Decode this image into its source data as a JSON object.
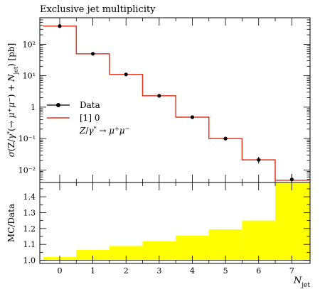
{
  "chart_data": [
    {
      "type": "line",
      "title": "Exclusive jet multiplicity",
      "ylabel": "σ(Z/γ* (→ μ+μ−) + N_jet) [pb]",
      "yscale": "log",
      "ylim": [
        0.004,
        700
      ],
      "xlim": [
        -0.6,
        7.55
      ],
      "x": [
        0,
        1,
        2,
        3,
        4,
        5,
        6,
        7
      ],
      "series": [
        {
          "name": "Data",
          "style": "points-with-errorbars",
          "color": "#000000",
          "values": [
            380,
            50,
            11,
            2.3,
            0.48,
            0.1,
            0.021,
            0.005
          ],
          "errors": [
            8,
            1.5,
            0.4,
            0.1,
            0.03,
            0.012,
            0.005,
            0.0025
          ]
        },
        {
          "name": "[1] 0",
          "style": "step-histogram",
          "color": "#e8361e",
          "edges": [
            -0.5,
            0.5,
            1.5,
            2.5,
            3.5,
            4.5,
            5.5,
            6.5,
            7.55
          ],
          "values": [
            380,
            50,
            11,
            2.3,
            0.48,
            0.1,
            0.021,
            0.0047
          ]
        }
      ],
      "ytick_labels": [
        "10²",
        "10¹",
        "1",
        "10⁻¹",
        "10⁻²"
      ],
      "yticks": [
        100,
        10,
        1,
        0.1,
        0.01
      ],
      "legend": {
        "placement": "middle-left",
        "entries": [
          "Data",
          "[1] 0"
        ],
        "subtitle": "Z/γ* → μ+μ−"
      }
    },
    {
      "type": "area",
      "ylabel": "MC/Data",
      "xlabel": "N_jet",
      "ylim": [
        0.98,
        1.49
      ],
      "xlim": [
        -0.6,
        7.55
      ],
      "band_color": "#ffff00",
      "edges": [
        -0.5,
        0.5,
        1.5,
        2.5,
        3.5,
        4.5,
        5.5,
        6.5,
        7.55
      ],
      "band_values": [
        1.02,
        1.065,
        1.09,
        1.12,
        1.155,
        1.195,
        1.25,
        1.485
      ],
      "reference_line": 1.0,
      "yticks": [
        1.0,
        1.1,
        1.2,
        1.3,
        1.4
      ],
      "ytick_labels": [
        "1.0",
        "1.1",
        "1.2",
        "1.3",
        "1.4"
      ],
      "xticks": [
        0,
        1,
        2,
        3,
        4,
        5,
        6,
        7
      ],
      "xtick_labels": [
        "0",
        "1",
        "2",
        "3",
        "4",
        "5",
        "6",
        "7"
      ]
    }
  ]
}
